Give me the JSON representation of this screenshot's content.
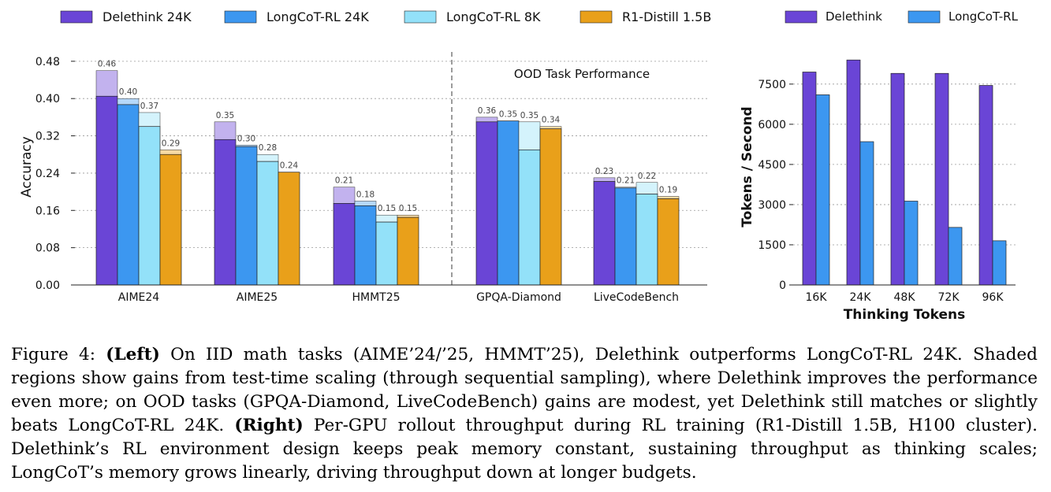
{
  "colors": {
    "delethink": "#6a45d6",
    "delethink_light": "#c2b2ee",
    "longcot24": "#3c97f0",
    "longcot24_light": "#b6d8f9",
    "longcot8": "#93e1f9",
    "longcot8_light": "#d4f3fc",
    "r1": "#e9a01a",
    "r1_light": "#f6d9a4"
  },
  "chart_data": [
    {
      "type": "bar",
      "title": "",
      "xlabel": "",
      "ylabel": "Accuracy",
      "ylim": [
        0,
        0.5
      ],
      "yticks": [
        "0.00",
        "0.08",
        "0.16",
        "0.24",
        "0.32",
        "0.40",
        "0.48"
      ],
      "categories": [
        "AIME24",
        "AIME25",
        "HMMT25",
        "GPQA-Diamond",
        "LiveCodeBench"
      ],
      "annotation": "OOD Task Performance",
      "legend": "top",
      "series": [
        {
          "name": "Delethink 24K",
          "values": [
            0.405,
            0.312,
            0.175,
            0.35,
            0.222
          ],
          "scaled": [
            0.46,
            0.35,
            0.21,
            0.36,
            0.23
          ],
          "labels": [
            "0.46",
            "0.35",
            "0.21",
            "0.36",
            "0.23"
          ]
        },
        {
          "name": "LongCoT-RL 24K",
          "values": [
            0.387,
            0.297,
            0.17,
            0.352,
            0.208
          ],
          "scaled": [
            0.4,
            0.3,
            0.18,
            0.35,
            0.21
          ],
          "labels": [
            "0.40",
            "0.30",
            "0.18",
            "0.35",
            "0.21"
          ]
        },
        {
          "name": "LongCoT-RL 8K",
          "values": [
            0.34,
            0.265,
            0.135,
            0.29,
            0.195
          ],
          "scaled": [
            0.37,
            0.28,
            0.15,
            0.35,
            0.22
          ],
          "labels": [
            "0.37",
            "0.28",
            "0.15",
            "0.35",
            "0.22"
          ]
        },
        {
          "name": "R1-Distill 1.5B",
          "values": [
            0.28,
            0.242,
            0.145,
            0.335,
            0.185
          ],
          "scaled": [
            0.29,
            0.24,
            0.15,
            0.34,
            0.19
          ],
          "labels": [
            "0.29",
            "0.24",
            "0.15",
            "0.34",
            "0.19"
          ]
        }
      ]
    },
    {
      "type": "bar",
      "title": "",
      "xlabel": "Thinking Tokens",
      "ylabel": "Tokens / Second",
      "ylim": [
        0,
        8700
      ],
      "yticks": [
        "0",
        "1500",
        "3000",
        "4500",
        "6000",
        "7500"
      ],
      "categories": [
        "16K",
        "24K",
        "48K",
        "72K",
        "96K"
      ],
      "legend": "top",
      "series": [
        {
          "name": "Delethink",
          "values": [
            7950,
            8400,
            7900,
            7900,
            7450
          ]
        },
        {
          "name": "LongCoT-RL",
          "values": [
            7100,
            5350,
            3130,
            2150,
            1650
          ]
        }
      ]
    }
  ],
  "caption": {
    "prefix": "Figure 4: ",
    "left_label": "(Left)",
    "left_text": " On IID math tasks (AIME’24/’25, HMMT’25), Delethink outperforms LongCoT-RL 24K. Shaded regions show gains from test-time scaling (through sequential sampling), where Delethink improves the performance even more; on OOD tasks (GPQA-Diamond, LiveCodeBench) gains are modest, yet Delethink still matches or slightly beats LongCoT-RL 24K. ",
    "right_label": "(Right)",
    "right_text": " Per-GPU rollout throughput during RL training (R1-Distill 1.5B, H100 cluster). Delethink’s RL environment design keeps peak memory constant, sustaining throughput as thinking scales; LongCoT’s memory grows linearly, driving throughput down at longer budgets."
  }
}
